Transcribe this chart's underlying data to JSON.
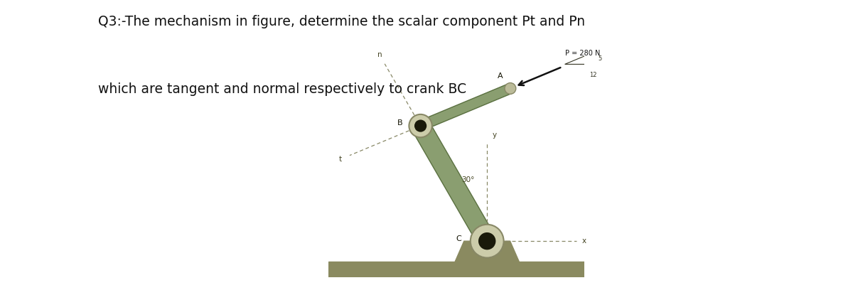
{
  "title_line1": "Q3:-The mechanism in figure, determine the scalar component Pt and Pn",
  "title_line2": "which are tangent and normal respectively to crank BC",
  "bg_color": "#ffffff",
  "diagram_bg": "#d8eda0",
  "title_fontsize": 13.5,
  "P_label": "P = 280 N",
  "angle_label": "30°",
  "rod_color": "#8a9e70",
  "rod_edge": "#5a7040",
  "dashed_color": "#888866",
  "ground_color": "#8a8a60",
  "label_A": "A",
  "label_B": "B",
  "label_C": "C",
  "label_t": "t",
  "label_n": "n",
  "label_x": "x",
  "label_y": "y",
  "triangle_5": "5",
  "triangle_12": "12"
}
